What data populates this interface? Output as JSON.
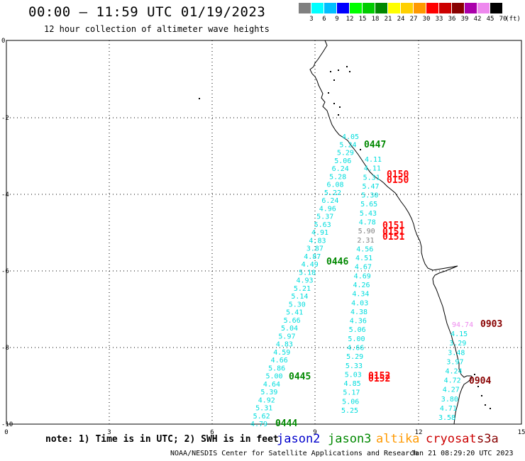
{
  "header": {
    "title": "00:00 – 11:59 UTC 01/19/2023",
    "subtitle": "12 hour collection of altimeter wave heights"
  },
  "colorbar": {
    "colors": [
      "#808080",
      "#00ffff",
      "#00bfff",
      "#0000ff",
      "#00ff00",
      "#00cc00",
      "#008800",
      "#ffff00",
      "#ffd000",
      "#ff9900",
      "#ff0000",
      "#cc0000",
      "#880000",
      "#aa00aa",
      "#ee88ee",
      "#000000"
    ],
    "labels": [
      "3",
      "6",
      "9",
      "12",
      "15",
      "18",
      "21",
      "24",
      "27",
      "30",
      "33",
      "36",
      "39",
      "42",
      "45",
      "70",
      "(ft)"
    ]
  },
  "axes": {
    "x_ticks": [
      "0",
      "3",
      "6",
      "9",
      "12",
      "15"
    ],
    "y_ticks": [
      "0",
      "-2",
      "-4",
      "-6",
      "-8",
      "-10"
    ]
  },
  "map_labels": {
    "passes": [
      {
        "text": "0447",
        "color": "#008800"
      },
      {
        "text": "0150",
        "color": "#ff0000"
      },
      {
        "text": "0150",
        "color": "#ff0000"
      },
      {
        "text": "0151",
        "color": "#ff0000"
      },
      {
        "text": "0151",
        "color": "#ff0000"
      },
      {
        "text": "0151",
        "color": "#ff0000"
      },
      {
        "text": "0446",
        "color": "#008800"
      },
      {
        "text": "0903",
        "color": "#880000"
      },
      {
        "text": "0445",
        "color": "#008800"
      },
      {
        "text": "0152",
        "color": "#ff0000"
      },
      {
        "text": "0152",
        "color": "#ff0000"
      },
      {
        "text": "0904",
        "color": "#880000"
      },
      {
        "text": "0444",
        "color": "#008800"
      }
    ],
    "track_a": [
      "4.05",
      "5.24",
      "5.29",
      "5.06",
      "6.24",
      "5.28",
      "6.08",
      "5.22",
      "6.24",
      "4.96",
      "5.37",
      "5.63",
      "4.91",
      "4.83",
      "3.87",
      "4.87",
      "4.49",
      "5.18",
      "4.93",
      "5.21",
      "5.14",
      "5.30",
      "5.41",
      "5.66",
      "5.04",
      "5.97",
      "4.83",
      "4.59",
      "4.66",
      "5.86",
      "5.00",
      "4.64",
      "5.39",
      "4.92",
      "5.31",
      "5.62",
      "4.79"
    ],
    "track_b": [
      "4.11",
      "4.11",
      "5.31",
      "5.47",
      "5.30",
      "5.65",
      "5.43",
      "4.78",
      "5.90",
      "2.31",
      "4.56",
      "4.51",
      "4.67",
      "4.69",
      "4.26",
      "4.34",
      "4.03",
      "4.38",
      "4.36",
      "5.06",
      "5.00",
      "4.66",
      "5.29",
      "5.33",
      "5.03",
      "4.85",
      "5.17",
      "5.06",
      "5.25"
    ],
    "track_c": [
      "94.74",
      "4.15",
      "3.29",
      "3.48",
      "3.97",
      "4.24",
      "4.72",
      "4.27",
      "3.80",
      "4.71",
      "3.58"
    ]
  },
  "legend_note": "note: 1) Time is in UTC; 2) SWH is in feet",
  "missions": [
    {
      "name": "jason2",
      "color": "#0000cc"
    },
    {
      "name": "jason3",
      "color": "#008800"
    },
    {
      "name": "altika",
      "color": "#ff9900"
    },
    {
      "name": "cryosat",
      "color": "#cc0000"
    },
    {
      "name": "s3a",
      "color": "#880000"
    }
  ],
  "footer": {
    "credit": "NOAA/NESDIS Center for Satellite Applications and Research",
    "timestamp": "Jan 21 08:29:20 UTC 2023"
  }
}
